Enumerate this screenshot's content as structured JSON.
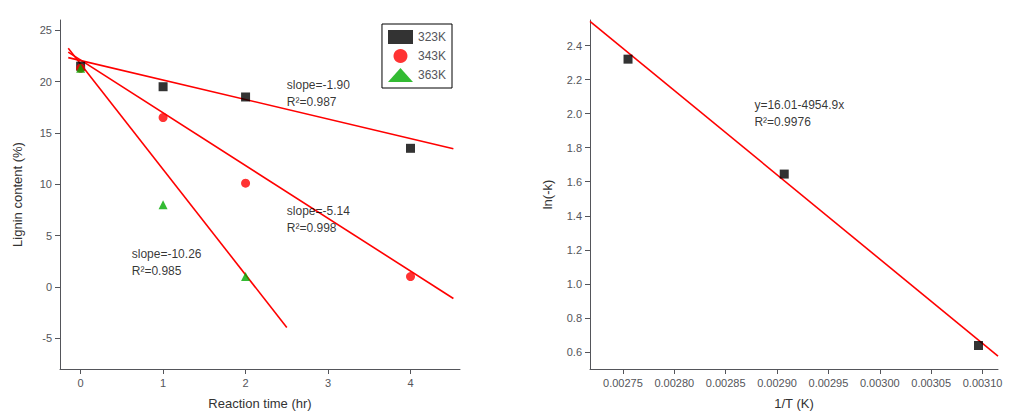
{
  "chart_data": [
    {
      "type": "scatter",
      "xlabel": "Reaction time (hr)",
      "ylabel": "Lignin content (%)",
      "series": [
        {
          "name": "323K",
          "color": "#000000",
          "marker": "square",
          "x": [
            0,
            1,
            2,
            4
          ],
          "values": [
            21.5,
            19.5,
            18.5,
            13.5
          ]
        },
        {
          "name": "343K",
          "color": "#ff0000",
          "marker": "circle",
          "x": [
            0,
            1,
            2,
            4
          ],
          "values": [
            21.3,
            16.5,
            10.1,
            1.0
          ]
        },
        {
          "name": "363K",
          "color": "#00aa00",
          "marker": "triangle",
          "x": [
            0,
            1,
            2
          ],
          "values": [
            21.3,
            8.0,
            1.0
          ]
        }
      ],
      "fit_lines": [
        {
          "type": "line",
          "color": "#ff0000",
          "x": [
            -0.15,
            4.52
          ],
          "values": [
            22.335,
            13.462
          ]
        },
        {
          "type": "line",
          "color": "#ff0000",
          "x": [
            -0.15,
            4.52
          ],
          "values": [
            22.871,
            -1.1328
          ]
        },
        {
          "type": "line",
          "color": "#ff0000",
          "x": [
            -0.15,
            2.5
          ],
          "values": [
            23.239,
            -3.95
          ]
        }
      ],
      "annotations": [
        {
          "text": "slope=-1.90\nR²=0.987",
          "x": 2.5,
          "y": 20.5
        },
        {
          "text": "slope=-5.14\nR²=0.998",
          "x": 2.5,
          "y": 8.2
        },
        {
          "text": "slope=-10.26\nR²=0.985",
          "x": 0.62,
          "y": 4.0
        }
      ],
      "xlim": [
        -0.25,
        4.6
      ],
      "ylim": [
        -8,
        26
      ],
      "xticks": [
        0,
        1,
        2,
        3,
        4
      ],
      "yticks": [
        -5,
        0,
        5,
        10,
        15,
        20,
        25
      ],
      "legend": "upper right",
      "grid": false
    },
    {
      "type": "scatter",
      "xlabel": "1/T (K)",
      "ylabel": "ln(-k)",
      "series": [
        {
          "color": "#000000",
          "marker": "square",
          "x": [
            0.002755,
            0.002907,
            0.003096
          ],
          "values": [
            2.32,
            1.645,
            0.638
          ]
        }
      ],
      "fit_lines": [
        {
          "type": "line",
          "color": "#ff0000",
          "x": [
            0.002718,
            0.003115
          ],
          "values": [
            2.5425818,
            0.5754865
          ]
        }
      ],
      "annotations": [
        {
          "text": "y=16.01-4954.9x\nR²=0.9976",
          "x": 0.002878,
          "y": 2.1
        }
      ],
      "xlim": [
        0.002718,
        0.003115
      ],
      "ylim": [
        0.5,
        2.55
      ],
      "xticks": [
        0.00275,
        {
          "value": 0.0028,
          "label": "0.00280"
        },
        0.00285,
        {
          "value": 0.0029,
          "label": "0.00290"
        },
        0.00295,
        {
          "value": 0.003,
          "label": "0.00300"
        },
        0.00305,
        {
          "value": 0.0031,
          "label": "0.00310"
        }
      ],
      "yticks": [
        0.6,
        0.8,
        {
          "value": 1.0,
          "label": "1.0"
        },
        1.2,
        1.4,
        1.6,
        1.8,
        {
          "value": 2.0,
          "label": "2.0"
        },
        2.2,
        2.4
      ],
      "grid": false
    }
  ]
}
